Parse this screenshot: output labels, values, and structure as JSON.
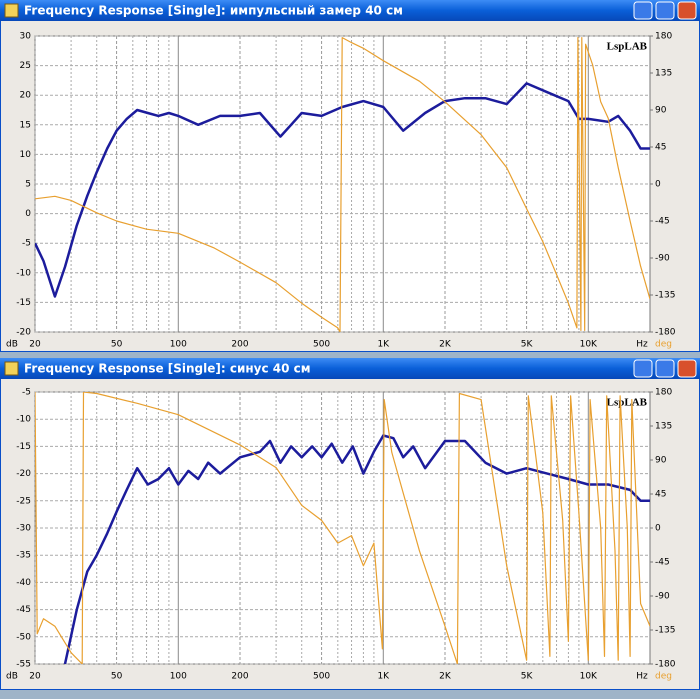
{
  "chart_data": [
    {
      "type": "line",
      "title": "Frequency Response [Single]: импульсный замер 40 см",
      "watermark": "LspLAB",
      "xlabel": "Hz",
      "ylabel": "dB",
      "y2label": "deg",
      "xscale": "log",
      "xlim": [
        20,
        20000
      ],
      "ylim": [
        -20,
        30
      ],
      "y2lim": [
        -180,
        180
      ],
      "xticks": [
        20,
        50,
        100,
        200,
        500,
        {
          "value": 1000,
          "label": "1K"
        },
        {
          "value": 2000,
          "label": "2K"
        },
        {
          "value": 5000,
          "label": "5K"
        },
        {
          "value": 10000,
          "label": "10K"
        }
      ],
      "xminorticks": [
        30,
        40,
        60,
        70,
        80,
        90,
        300,
        400,
        600,
        700,
        800,
        900,
        3000,
        4000,
        6000,
        7000,
        8000,
        9000
      ],
      "yticks": [
        -20,
        -15,
        -10,
        -5,
        0,
        5,
        10,
        15,
        20,
        25,
        30
      ],
      "y2ticks": [
        -180,
        -135,
        -90,
        -45,
        0,
        45,
        90,
        135,
        180
      ],
      "grid": true,
      "series": [
        {
          "color": "#1c1c9c",
          "width": 2.5,
          "x": [
            20,
            22,
            25,
            28,
            32,
            36,
            40,
            45,
            50,
            56,
            63,
            71,
            80,
            90,
            100,
            125,
            160,
            200,
            250,
            315,
            355,
            400,
            500,
            630,
            800,
            1000,
            1250,
            1600,
            2000,
            2500,
            3150,
            4000,
            5000,
            6300,
            8000,
            9000,
            10000,
            12500,
            14000,
            16000,
            18000,
            20000
          ],
          "values": [
            -5,
            -8,
            -14,
            -9,
            -2,
            3,
            7,
            11,
            14,
            16,
            17.5,
            17,
            16.5,
            17,
            16.5,
            15,
            16.5,
            16.5,
            17,
            13,
            15,
            17,
            16.5,
            18,
            19,
            18,
            14,
            17,
            19,
            19.5,
            19.5,
            18.5,
            22,
            20.5,
            19,
            16,
            16,
            15.5,
            16.5,
            14,
            11,
            11
          ]
        },
        {
          "color": "#e8a030",
          "width": 1.2,
          "axis": "y2",
          "x": [
            20,
            25,
            30,
            40,
            50,
            70,
            100,
            150,
            200,
            300,
            400,
            500,
            600,
            615,
            630,
            700,
            800,
            1000,
            1500,
            2000,
            3000,
            4000,
            5000,
            6000,
            7000,
            8000,
            8800,
            8900,
            9200,
            9300,
            9600,
            9700,
            10500,
            11500,
            12500,
            14000,
            16000,
            18000,
            20000
          ],
          "values": [
            -18,
            -15,
            -20,
            -35,
            -45,
            -55,
            -60,
            -78,
            -95,
            -120,
            -145,
            -162,
            -175,
            -180,
            178,
            172,
            165,
            150,
            125,
            100,
            60,
            20,
            -30,
            -70,
            -110,
            -145,
            -175,
            178,
            -178,
            178,
            -178,
            170,
            145,
            100,
            80,
            20,
            -45,
            -100,
            -140
          ]
        }
      ]
    },
    {
      "type": "line",
      "title": "Frequency Response [Single]: синус 40 см",
      "watermark": "LspLAB",
      "xlabel": "Hz",
      "ylabel": "dB",
      "y2label": "deg",
      "xscale": "log",
      "xlim": [
        20,
        20000
      ],
      "ylim": [
        -55,
        -5
      ],
      "y2lim": [
        -180,
        180
      ],
      "xticks": [
        20,
        50,
        100,
        200,
        500,
        {
          "value": 1000,
          "label": "1K"
        },
        {
          "value": 2000,
          "label": "2K"
        },
        {
          "value": 5000,
          "label": "5K"
        },
        {
          "value": 10000,
          "label": "10K"
        }
      ],
      "xminorticks": [
        30,
        40,
        60,
        70,
        80,
        90,
        300,
        400,
        600,
        700,
        800,
        900,
        3000,
        4000,
        6000,
        7000,
        8000,
        9000
      ],
      "yticks": [
        -55,
        -50,
        -45,
        -40,
        -35,
        -30,
        -25,
        -20,
        -15,
        -10,
        -5
      ],
      "y2ticks": [
        -180,
        -135,
        -90,
        -45,
        0,
        45,
        90,
        135,
        180
      ],
      "grid": true,
      "series": [
        {
          "color": "#1c1c9c",
          "width": 2.5,
          "x": [
            28,
            32,
            36,
            40,
            45,
            50,
            56,
            63,
            71,
            80,
            90,
            100,
            112,
            125,
            140,
            160,
            200,
            250,
            280,
            315,
            355,
            400,
            450,
            500,
            560,
            630,
            710,
            800,
            900,
            1000,
            1120,
            1250,
            1400,
            1600,
            2000,
            2500,
            3150,
            4000,
            5000,
            6300,
            8000,
            10000,
            12500,
            16000,
            18000,
            20000
          ],
          "values": [
            -55,
            -45,
            -38,
            -35,
            -31,
            -27,
            -23,
            -19,
            -22,
            -21,
            -19,
            -22,
            -19.5,
            -21,
            -18,
            -20,
            -17,
            -16,
            -14,
            -18,
            -15,
            -17,
            -15,
            -17,
            -14.5,
            -18,
            -15,
            -20,
            -16,
            -13,
            -13.5,
            -17,
            -15,
            -19,
            -14,
            -14,
            -18,
            -20,
            -19,
            -20,
            -21,
            -22,
            -22,
            -23,
            -25,
            -25
          ]
        },
        {
          "color": "#e8a030",
          "width": 1.2,
          "axis": "y2",
          "x": [
            20,
            20.5,
            22,
            25,
            30,
            34,
            34.5,
            40,
            63,
            100,
            200,
            300,
            400,
            500,
            600,
            700,
            800,
            900,
            990,
            1010,
            1100,
            1500,
            2000,
            2300,
            2350,
            3000,
            4000,
            5000,
            5100,
            6000,
            6500,
            6600,
            7500,
            8000,
            8200,
            9000,
            10000,
            10200,
            11500,
            12000,
            12300,
            13500,
            14000,
            14300,
            15500,
            16000,
            16300,
            18000,
            20000
          ],
          "values": [
            180,
            -140,
            -120,
            -130,
            -165,
            -180,
            180,
            178,
            165,
            150,
            110,
            80,
            30,
            10,
            -20,
            -10,
            -50,
            -20,
            -160,
            170,
            100,
            -30,
            -130,
            -180,
            178,
            170,
            -50,
            -175,
            175,
            20,
            -170,
            175,
            10,
            -150,
            175,
            20,
            -175,
            170,
            0,
            -170,
            175,
            -30,
            -175,
            175,
            0,
            -170,
            170,
            -100,
            -130
          ]
        }
      ]
    }
  ]
}
